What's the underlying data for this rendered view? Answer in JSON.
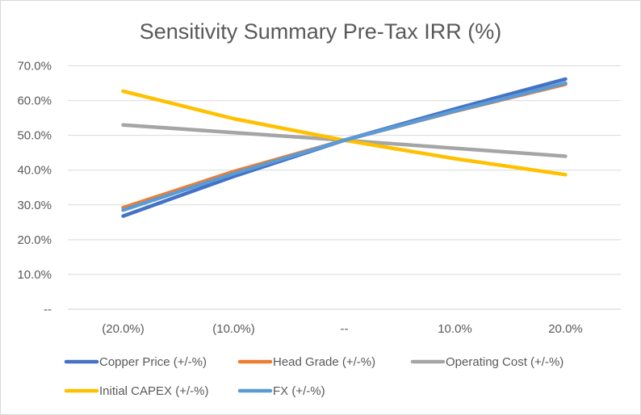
{
  "chart_data": {
    "type": "line",
    "title": "Sensitivity Summary Pre-Tax IRR (%)",
    "xlabel": "",
    "ylabel": "",
    "categories": [
      "(20.0%)",
      "(10.0%)",
      "--",
      "10.0%",
      "20.0%"
    ],
    "ylim": [
      0,
      70
    ],
    "yticks": [
      0,
      10,
      20,
      30,
      40,
      50,
      60,
      70
    ],
    "ytick_labels": [
      "--",
      "10.0%",
      "20.0%",
      "30.0%",
      "40.0%",
      "50.0%",
      "60.0%",
      "70.0%"
    ],
    "grid": true,
    "legend_position": "bottom",
    "series": [
      {
        "name": "Copper Price (+/-%)",
        "color": "#4472C4",
        "values": [
          26.8,
          38.2,
          48.6,
          57.6,
          66.2
        ]
      },
      {
        "name": "Head Grade (+/-%)",
        "color": "#ED7D31",
        "values": [
          29.2,
          39.6,
          48.6,
          56.9,
          64.7
        ]
      },
      {
        "name": "Operating Cost (+/-%)",
        "color": "#A5A5A5",
        "values": [
          53.0,
          50.8,
          48.6,
          46.3,
          44.0
        ]
      },
      {
        "name": "Initial CAPEX  (+/-%)",
        "color": "#FFC000",
        "values": [
          62.7,
          54.8,
          48.6,
          43.3,
          38.7
        ]
      },
      {
        "name": "FX  (+/-%)",
        "color": "#5B9BD5",
        "values": [
          28.5,
          39.0,
          48.6,
          57.0,
          65.0
        ]
      }
    ]
  }
}
